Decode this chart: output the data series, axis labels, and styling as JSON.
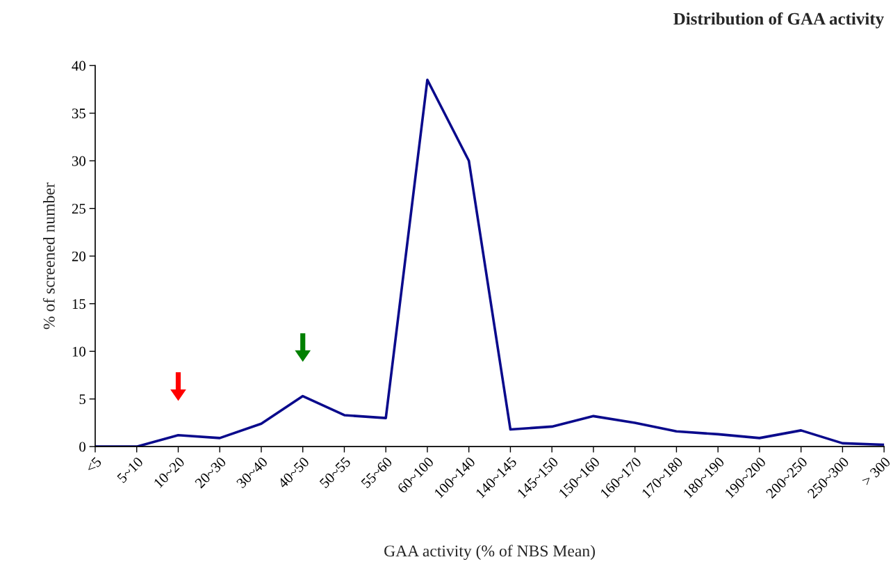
{
  "chart_data": {
    "type": "line",
    "title": "Distribution of GAA activity",
    "xlabel": "GAA activity (% of NBS Mean)",
    "ylabel": "% of screened number",
    "categories": [
      "<5",
      "5~10",
      "10~20",
      "20~30",
      "30~40",
      "40~50",
      "50~55",
      "55~60",
      "60~100",
      "100~140",
      "140~145",
      "145~150",
      "150~160",
      "160~170",
      "170~180",
      "180~190",
      "190~200",
      "200~250",
      "250~300",
      "> 300"
    ],
    "series": [
      {
        "color": "#0a0a8c",
        "values": [
          0,
          0,
          1.2,
          0.9,
          2.4,
          5.3,
          3.3,
          3,
          38.5,
          30,
          1.8,
          2.1,
          3.2,
          2.5,
          1.6,
          1.3,
          0.9,
          1.7,
          0.35,
          0.2
        ]
      }
    ],
    "ylim": [
      0,
      40
    ],
    "yticks": [
      0,
      5,
      10,
      15,
      20,
      25,
      30,
      35,
      40
    ],
    "grid": false,
    "marker": "none",
    "line_style": "solid"
  }
}
